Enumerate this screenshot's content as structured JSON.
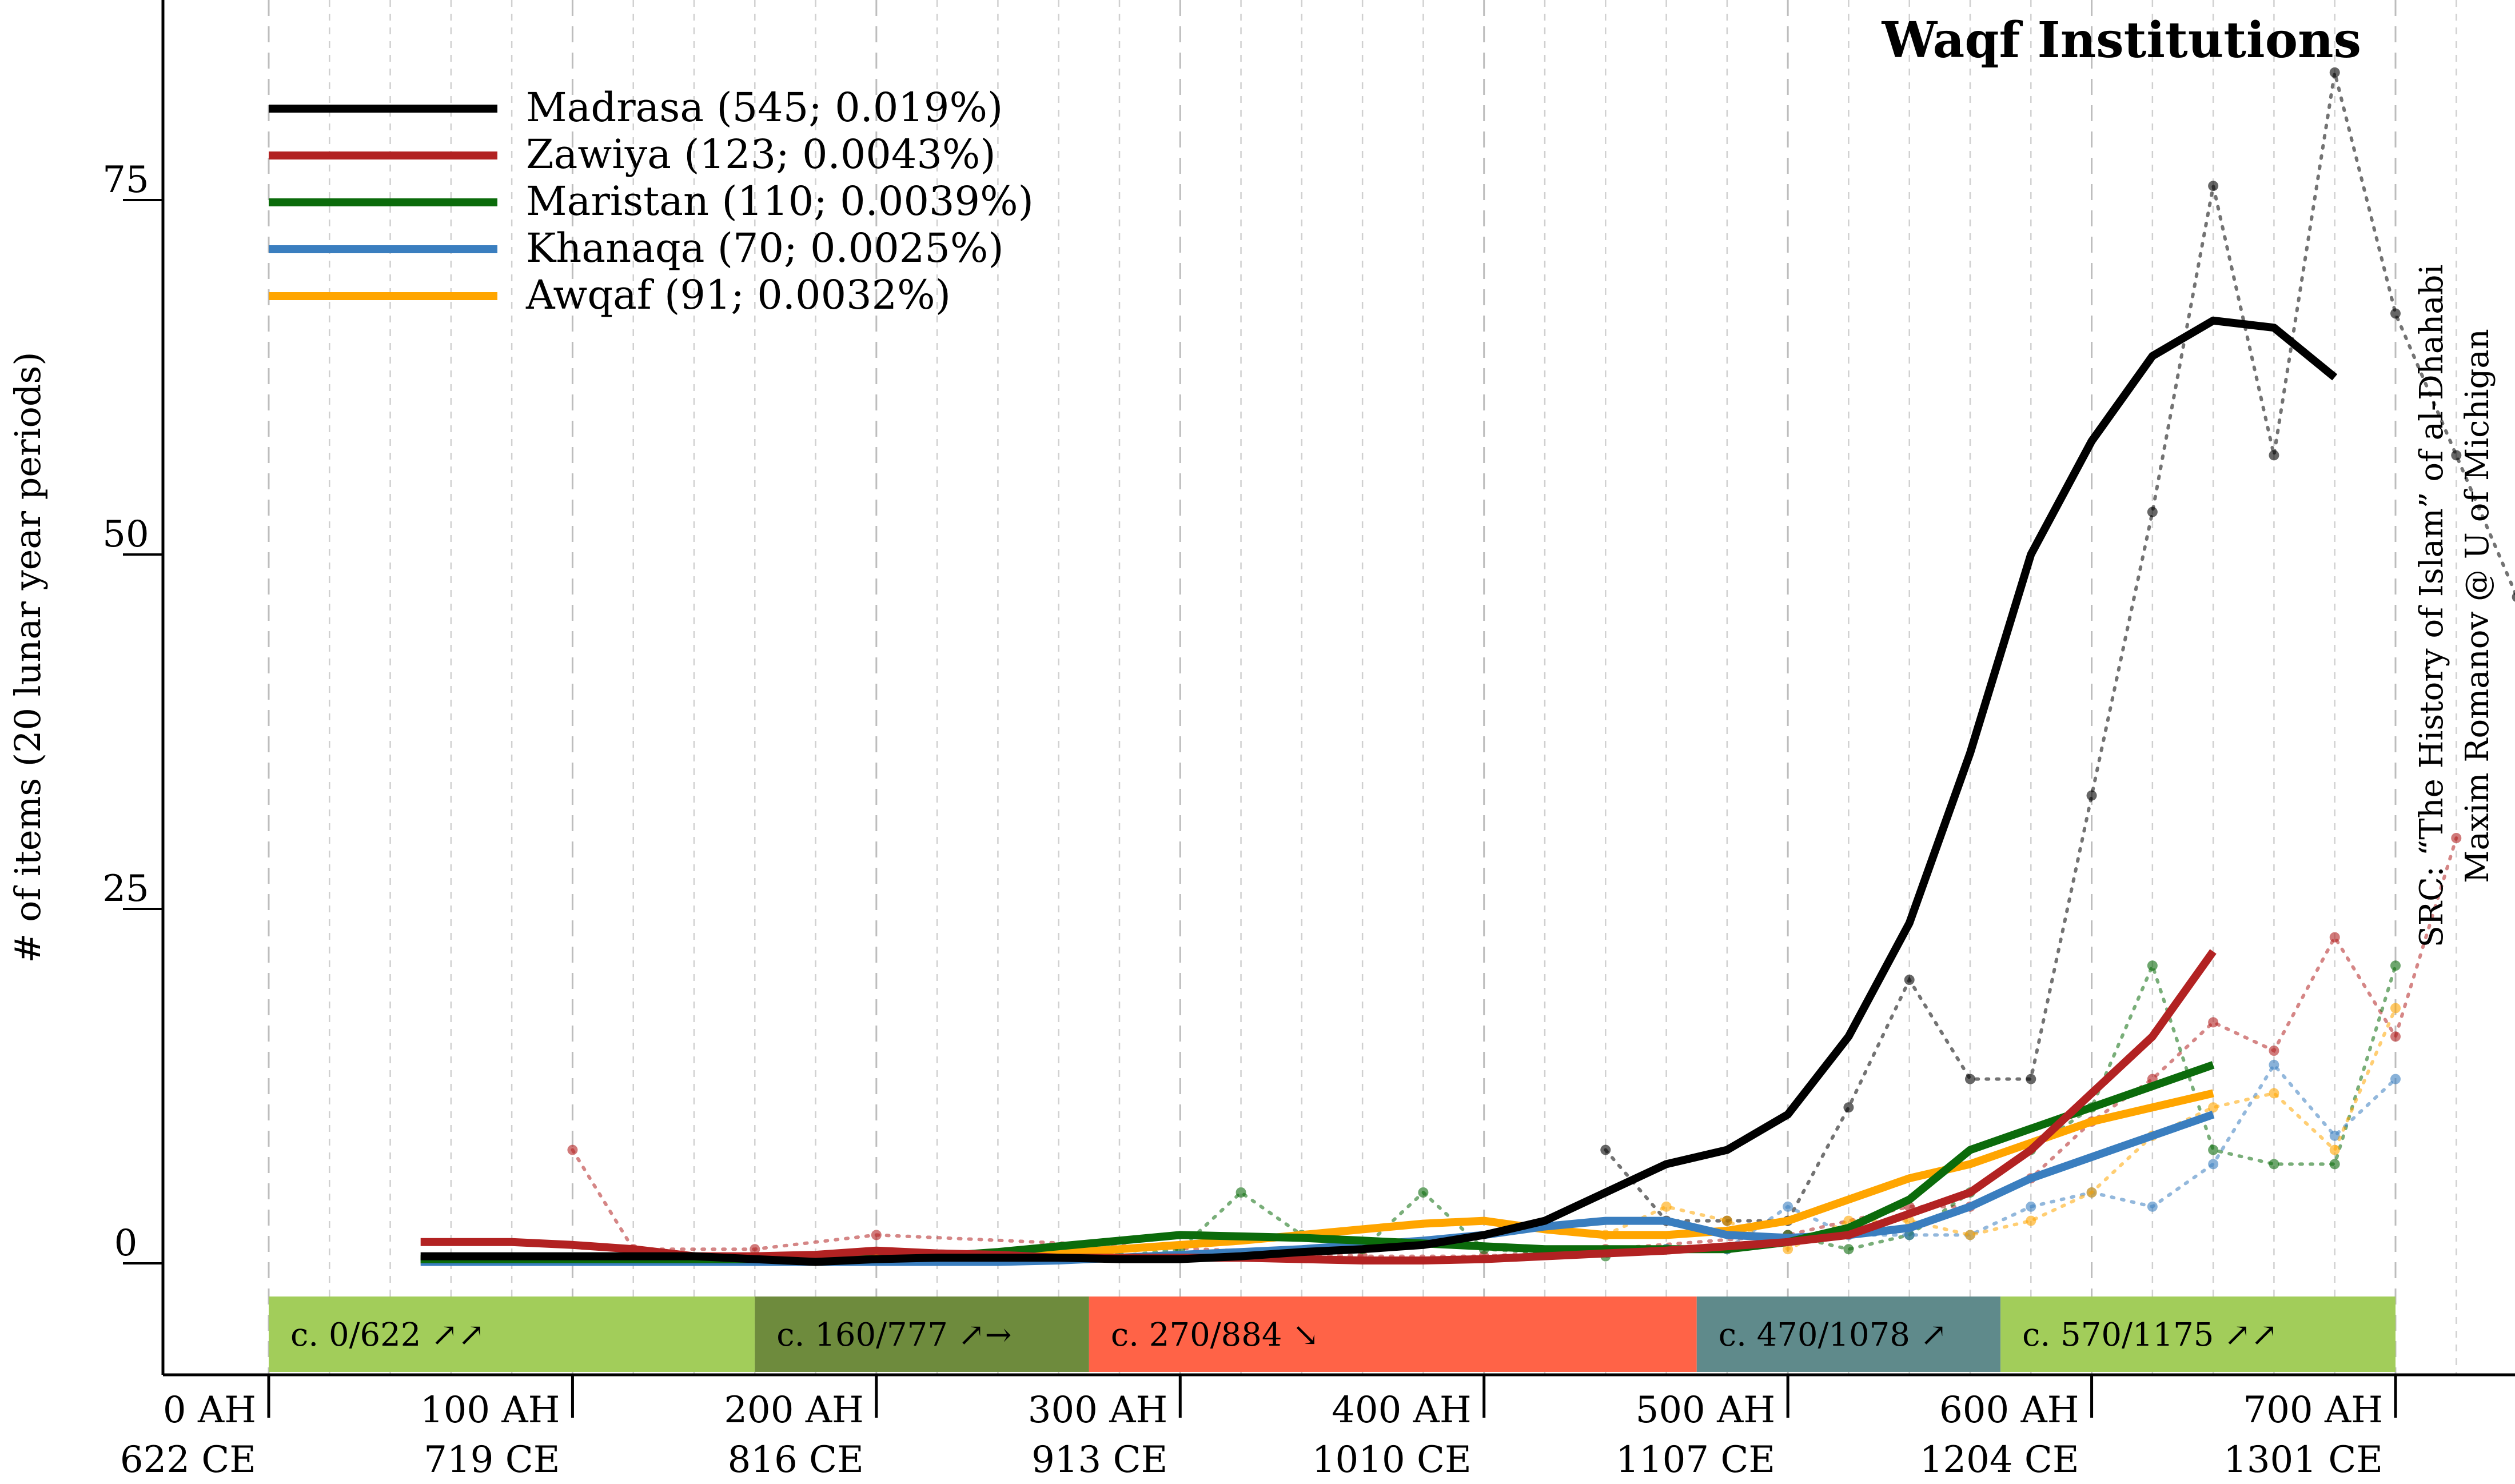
{
  "chart_data": {
    "type": "line",
    "title": "Waqf Institutions",
    "ylabel": "# of items (20 lunar year periods)",
    "source_lines": [
      "SRC: “The History of Islam” of al-Dhahabi",
      "Maxim Romanov @ U of Michigan"
    ],
    "xlim": [
      0,
      700
    ],
    "ylim": [
      -6,
      96
    ],
    "y_ticks": [
      {
        "value": 0,
        "label": "0"
      },
      {
        "value": 25,
        "label": "25"
      },
      {
        "value": 50,
        "label": "50"
      },
      {
        "value": 75,
        "label": "75"
      }
    ],
    "x_ticks": [
      {
        "value": 0,
        "ah": "0 AH",
        "ce": "622 CE"
      },
      {
        "value": 100,
        "ah": "100 AH",
        "ce": "719 CE"
      },
      {
        "value": 200,
        "ah": "200 AH",
        "ce": "816 CE"
      },
      {
        "value": 300,
        "ah": "300 AH",
        "ce": "913 CE"
      },
      {
        "value": 400,
        "ah": "400 AH",
        "ce": "1010 CE"
      },
      {
        "value": 500,
        "ah": "500 AH",
        "ce": "1107 CE"
      },
      {
        "value": 600,
        "ah": "600 AH",
        "ce": "1204 CE"
      },
      {
        "value": 700,
        "ah": "700 AH",
        "ce": "1301 CE"
      }
    ],
    "grid": "vertical dashed lines every 20 AH",
    "legend_position": "top-left",
    "series": [
      {
        "name": "Madrasa (545; 0.019%)",
        "color": "#000000",
        "x": [
          50,
          60,
          80,
          100,
          120,
          140,
          160,
          180,
          200,
          220,
          240,
          260,
          280,
          300,
          320,
          340,
          360,
          380,
          400,
          420,
          440,
          460,
          480,
          500,
          520,
          540,
          560,
          580,
          600,
          620,
          640,
          660,
          680,
          700
        ],
        "y": [
          0.5,
          0.5,
          0.5,
          0.5,
          0.5,
          0.5,
          0.3,
          0.1,
          0.3,
          0.4,
          0.4,
          0.4,
          0.3,
          0.3,
          0.5,
          0.8,
          1,
          1.3,
          2,
          3,
          5,
          7,
          8,
          10.5,
          16,
          24,
          36,
          50,
          58,
          64,
          66.5,
          66,
          62.5,
          null
        ],
        "points_x": [
          440,
          460,
          480,
          500,
          520,
          540,
          560,
          580,
          600,
          620,
          640,
          660,
          680,
          700
        ],
        "points_y": [
          8,
          3,
          3,
          3,
          11,
          20,
          13,
          13,
          33,
          53,
          76,
          57,
          84,
          null
        ],
        "extra_points": [
          [
            700,
            67
          ],
          [
            720,
            57
          ],
          [
            740,
            47
          ]
        ]
      },
      {
        "name": "Zawiya (123; 0.0043%)",
        "color": "#b22222",
        "x": [
          50,
          60,
          80,
          100,
          120,
          140,
          160,
          180,
          200,
          220,
          240,
          260,
          280,
          300,
          320,
          340,
          360,
          380,
          400,
          420,
          440,
          460,
          480,
          500,
          520,
          540,
          560,
          580,
          600,
          620,
          640,
          660,
          680
        ],
        "y": [
          1.5,
          1.5,
          1.5,
          1.3,
          1,
          0.5,
          0.5,
          0.6,
          0.9,
          0.7,
          0.6,
          0.4,
          0.4,
          0.4,
          0.4,
          0.3,
          0.2,
          0.2,
          0.3,
          0.5,
          0.7,
          0.9,
          1.2,
          1.5,
          2,
          3.5,
          5,
          8,
          12,
          16,
          22,
          null,
          null
        ],
        "points_x": [
          100,
          120,
          160,
          200,
          360,
          400,
          440,
          500,
          540,
          560,
          580,
          600,
          620,
          640,
          660,
          680,
          700,
          720
        ],
        "points_y": [
          8,
          1,
          1,
          2,
          0.5,
          0.5,
          1,
          2,
          4,
          4,
          6,
          10,
          13,
          17,
          15,
          23,
          16,
          30
        ]
      },
      {
        "name": "Maristan (110; 0.0039%)",
        "color": "#0b6b0b",
        "x": [
          50,
          60,
          80,
          100,
          120,
          140,
          160,
          180,
          200,
          220,
          240,
          260,
          280,
          300,
          320,
          340,
          360,
          380,
          400,
          420,
          440,
          460,
          480,
          500,
          520,
          540,
          560,
          580,
          600,
          620,
          640,
          660,
          680
        ],
        "y": [
          0.3,
          0.3,
          0.3,
          0.3,
          0.3,
          0.3,
          0.3,
          0.3,
          0.3,
          0.5,
          0.8,
          1.2,
          1.6,
          2,
          1.9,
          1.8,
          1.6,
          1.4,
          1.2,
          1,
          1,
          1,
          1,
          1.5,
          2.5,
          4.5,
          8,
          9.5,
          11,
          12.5,
          14,
          null,
          null
        ],
        "points_x": [
          200,
          260,
          280,
          300,
          320,
          340,
          360,
          380,
          400,
          440,
          460,
          480,
          500,
          520,
          540,
          560,
          580,
          600,
          620,
          640,
          660,
          680,
          700
        ],
        "points_y": [
          0.5,
          0.5,
          0.5,
          1,
          5,
          2,
          1,
          5,
          1,
          0.5,
          1,
          1,
          2,
          1,
          2,
          5,
          8,
          11,
          21,
          8,
          7,
          7,
          21
        ]
      },
      {
        "name": "Khanaqa (70; 0.0025%)",
        "color": "#3a7ebf",
        "x": [
          50,
          60,
          80,
          100,
          120,
          140,
          160,
          180,
          200,
          220,
          240,
          260,
          280,
          300,
          320,
          340,
          360,
          380,
          400,
          420,
          440,
          460,
          480,
          500,
          520,
          540,
          560,
          580,
          600,
          620,
          640,
          660,
          680
        ],
        "y": [
          0.1,
          0.1,
          0.1,
          0.1,
          0.1,
          0.1,
          0.1,
          0.1,
          0.1,
          0.1,
          0.1,
          0.2,
          0.4,
          0.6,
          0.8,
          1,
          1.3,
          1.6,
          2,
          2.6,
          3,
          3,
          2,
          1.8,
          2,
          2.5,
          4,
          6,
          7.5,
          9,
          10.5,
          null,
          null
        ],
        "points_x": [
          460,
          480,
          500,
          520,
          540,
          560,
          580,
          600,
          620,
          640,
          660,
          680,
          700
        ],
        "points_y": [
          1,
          1,
          4,
          2,
          2,
          2,
          4,
          5,
          4,
          7,
          14,
          9,
          13
        ]
      },
      {
        "name": "Awqaf (91; 0.0032%)",
        "color": "#ffa500",
        "x": [
          50,
          60,
          80,
          100,
          120,
          140,
          160,
          180,
          200,
          220,
          240,
          260,
          280,
          300,
          320,
          340,
          360,
          380,
          400,
          420,
          440,
          460,
          480,
          500,
          520,
          540,
          560,
          580,
          600,
          620,
          640,
          660,
          680
        ],
        "y": [
          0.2,
          0.2,
          0.2,
          0.2,
          0.3,
          0.4,
          0.5,
          0.5,
          0.4,
          0.4,
          0.5,
          0.7,
          1,
          1.3,
          1.6,
          2,
          2.4,
          2.8,
          3,
          2.4,
          2,
          2,
          2.3,
          3,
          4.5,
          6,
          7,
          8.5,
          10,
          11,
          12,
          null,
          null
        ],
        "points_x": [
          440,
          460,
          480,
          500,
          520,
          540,
          560,
          580,
          600,
          620,
          640,
          660,
          680,
          700
        ],
        "points_y": [
          2,
          4,
          3,
          1,
          3,
          3,
          2,
          3,
          5,
          9,
          11,
          12,
          8,
          18
        ]
      }
    ],
    "periods": [
      {
        "label": "c. 0/622 ↗↗",
        "start": 0,
        "end": 160,
        "color": "#a2cd5a"
      },
      {
        "label": "c. 160/777 ↗→",
        "start": 160,
        "end": 270,
        "color": "#6e8b3d"
      },
      {
        "label": "c. 270/884 ↘",
        "start": 270,
        "end": 470,
        "color": "#ff6347"
      },
      {
        "label": "c. 470/1078 ↗",
        "start": 470,
        "end": 570,
        "color": "#5f8a8b"
      },
      {
        "label": "c. 570/1175 ↗↗",
        "start": 570,
        "end": 700,
        "color": "#a2cd5a"
      }
    ]
  }
}
